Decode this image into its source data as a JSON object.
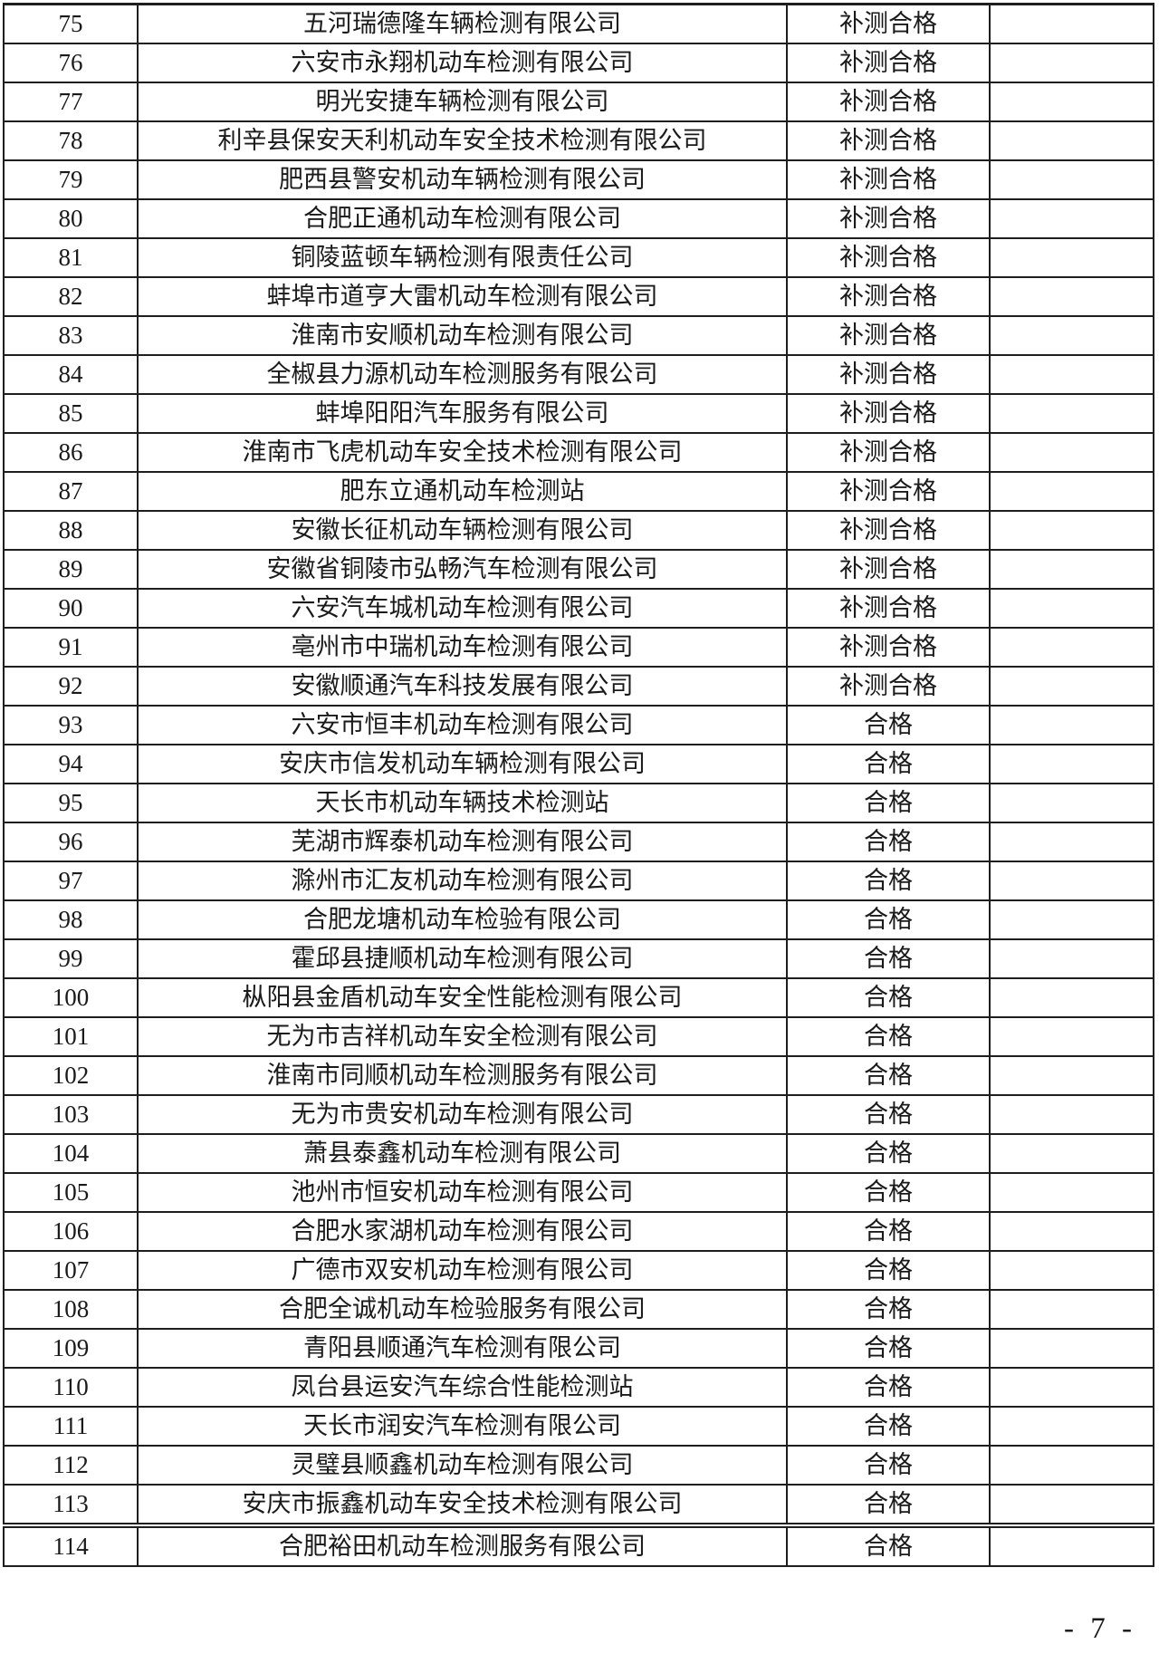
{
  "table": {
    "rows": [
      {
        "index": "75",
        "company": "五河瑞德隆车辆检测有限公司",
        "result": "补测合格",
        "remark": ""
      },
      {
        "index": "76",
        "company": "六安市永翔机动车检测有限公司",
        "result": "补测合格",
        "remark": ""
      },
      {
        "index": "77",
        "company": "明光安捷车辆检测有限公司",
        "result": "补测合格",
        "remark": ""
      },
      {
        "index": "78",
        "company": "利辛县保安天利机动车安全技术检测有限公司",
        "result": "补测合格",
        "remark": ""
      },
      {
        "index": "79",
        "company": "肥西县警安机动车辆检测有限公司",
        "result": "补测合格",
        "remark": ""
      },
      {
        "index": "80",
        "company": "合肥正通机动车检测有限公司",
        "result": "补测合格",
        "remark": ""
      },
      {
        "index": "81",
        "company": "铜陵蓝顿车辆检测有限责任公司",
        "result": "补测合格",
        "remark": ""
      },
      {
        "index": "82",
        "company": "蚌埠市道亨大雷机动车检测有限公司",
        "result": "补测合格",
        "remark": ""
      },
      {
        "index": "83",
        "company": "淮南市安顺机动车检测有限公司",
        "result": "补测合格",
        "remark": ""
      },
      {
        "index": "84",
        "company": "全椒县力源机动车检测服务有限公司",
        "result": "补测合格",
        "remark": ""
      },
      {
        "index": "85",
        "company": "蚌埠阳阳汽车服务有限公司",
        "result": "补测合格",
        "remark": ""
      },
      {
        "index": "86",
        "company": "淮南市飞虎机动车安全技术检测有限公司",
        "result": "补测合格",
        "remark": ""
      },
      {
        "index": "87",
        "company": "肥东立通机动车检测站",
        "result": "补测合格",
        "remark": ""
      },
      {
        "index": "88",
        "company": "安徽长征机动车辆检测有限公司",
        "result": "补测合格",
        "remark": ""
      },
      {
        "index": "89",
        "company": "安徽省铜陵市弘畅汽车检测有限公司",
        "result": "补测合格",
        "remark": ""
      },
      {
        "index": "90",
        "company": "六安汽车城机动车检测有限公司",
        "result": "补测合格",
        "remark": ""
      },
      {
        "index": "91",
        "company": "亳州市中瑞机动车检测有限公司",
        "result": "补测合格",
        "remark": ""
      },
      {
        "index": "92",
        "company": "安徽顺通汽车科技发展有限公司",
        "result": "补测合格",
        "remark": ""
      },
      {
        "index": "93",
        "company": "六安市恒丰机动车检测有限公司",
        "result": "合格",
        "remark": ""
      },
      {
        "index": "94",
        "company": "安庆市信发机动车辆检测有限公司",
        "result": "合格",
        "remark": ""
      },
      {
        "index": "95",
        "company": "天长市机动车辆技术检测站",
        "result": "合格",
        "remark": ""
      },
      {
        "index": "96",
        "company": "芜湖市辉泰机动车检测有限公司",
        "result": "合格",
        "remark": ""
      },
      {
        "index": "97",
        "company": "滁州市汇友机动车检测有限公司",
        "result": "合格",
        "remark": ""
      },
      {
        "index": "98",
        "company": "合肥龙塘机动车检验有限公司",
        "result": "合格",
        "remark": ""
      },
      {
        "index": "99",
        "company": "霍邱县捷顺机动车检测有限公司",
        "result": "合格",
        "remark": ""
      },
      {
        "index": "100",
        "company": "枞阳县金盾机动车安全性能检测有限公司",
        "result": "合格",
        "remark": ""
      },
      {
        "index": "101",
        "company": "无为市吉祥机动车安全检测有限公司",
        "result": "合格",
        "remark": ""
      },
      {
        "index": "102",
        "company": "淮南市同顺机动车检测服务有限公司",
        "result": "合格",
        "remark": ""
      },
      {
        "index": "103",
        "company": "无为市贵安机动车检测有限公司",
        "result": "合格",
        "remark": ""
      },
      {
        "index": "104",
        "company": "萧县泰鑫机动车检测有限公司",
        "result": "合格",
        "remark": ""
      },
      {
        "index": "105",
        "company": "池州市恒安机动车检测有限公司",
        "result": "合格",
        "remark": ""
      },
      {
        "index": "106",
        "company": "合肥水家湖机动车检测有限公司",
        "result": "合格",
        "remark": ""
      },
      {
        "index": "107",
        "company": "广德市双安机动车检测有限公司",
        "result": "合格",
        "remark": ""
      },
      {
        "index": "108",
        "company": "合肥全诚机动车检验服务有限公司",
        "result": "合格",
        "remark": ""
      },
      {
        "index": "109",
        "company": "青阳县顺通汽车检测有限公司",
        "result": "合格",
        "remark": ""
      },
      {
        "index": "110",
        "company": "凤台县运安汽车综合性能检测站",
        "result": "合格",
        "remark": ""
      },
      {
        "index": "111",
        "company": "天长市润安汽车检测有限公司",
        "result": "合格",
        "remark": ""
      },
      {
        "index": "112",
        "company": "灵璧县顺鑫机动车检测有限公司",
        "result": "合格",
        "remark": ""
      },
      {
        "index": "113",
        "company": "安庆市振鑫机动车安全技术检测有限公司",
        "result": "合格",
        "remark": ""
      },
      {
        "index": "114",
        "company": "合肥裕田机动车检测服务有限公司",
        "result": "合格",
        "remark": ""
      }
    ]
  },
  "footer": {
    "page_number": "- 7 -"
  }
}
